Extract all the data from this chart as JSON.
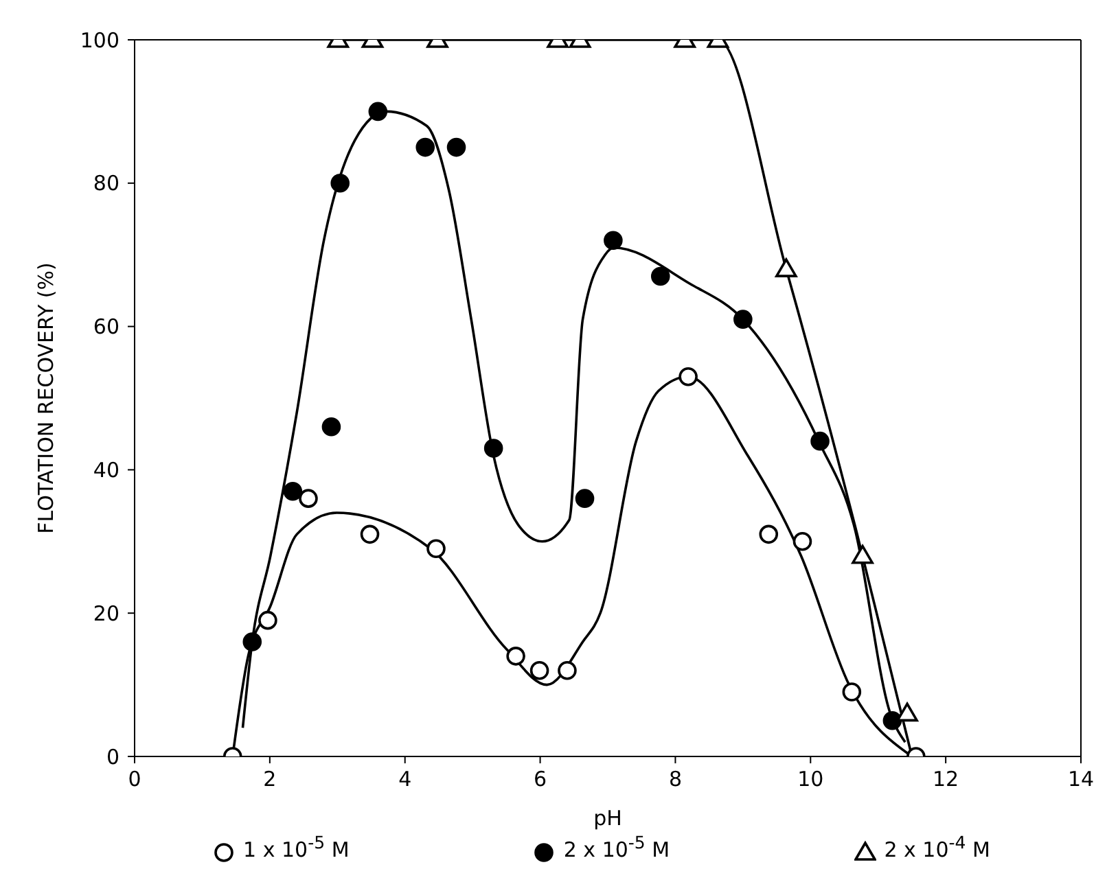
{
  "chart_data": {
    "type": "scatter",
    "xlabel": "pH",
    "ylabel": "FLOTATION RECOVERY (%)",
    "xlim": [
      0,
      14
    ],
    "xticks": [
      0,
      2,
      4,
      6,
      8,
      10,
      12,
      14
    ],
    "ylim": [
      0,
      100
    ],
    "yticks": [
      0,
      20,
      40,
      60,
      80,
      100
    ],
    "grid": false,
    "legend": "bottom",
    "series": [
      {
        "name": "1 x 10$^{-5}$ M",
        "color": "#ffffff",
        "marker": "circle",
        "x": [
          1.45,
          1.97,
          2.57,
          3.48,
          4.46,
          5.64,
          5.99,
          6.4,
          8.19,
          9.38,
          9.88,
          10.61,
          11.56
        ],
        "values": [
          0,
          19,
          36,
          31,
          29,
          14,
          12,
          12,
          53,
          31,
          30,
          9,
          0
        ]
      },
      {
        "name": "2 x 10$^{-5}$ M",
        "color": "#000000",
        "marker": "circle",
        "x": [
          1.74,
          2.34,
          2.91,
          3.04,
          3.6,
          4.3,
          4.76,
          5.31,
          6.66,
          7.08,
          7.78,
          9.0,
          10.14,
          11.21
        ],
        "values": [
          16,
          37,
          46,
          80,
          90,
          85,
          85,
          43,
          36,
          72,
          67,
          61,
          44,
          5
        ]
      },
      {
        "name": "2 x 10$^{-4}$ M",
        "color": "#ffffff",
        "marker": "triangle",
        "x": [
          3.01,
          3.52,
          4.48,
          6.26,
          6.59,
          8.14,
          8.63,
          9.64,
          10.77,
          11.43
        ],
        "values": [
          100,
          100,
          100,
          100,
          100,
          100,
          100,
          68,
          28,
          6
        ]
      },
      {
        "type": "line",
        "color": "#000000",
        "marker": "none",
        "x": [
          1.45,
          1.68,
          2.01,
          2.4,
          2.99,
          4.38,
          5.5,
          6.1,
          6.63,
          6.89,
          7.42,
          7.75,
          8.19,
          9.07,
          9.86,
          10.57,
          11.5
        ],
        "values": [
          0,
          14,
          21,
          31,
          34,
          29,
          15,
          10,
          16,
          20,
          44,
          51,
          53,
          42,
          28,
          10,
          0
        ]
      },
      {
        "type": "line",
        "color": "#000000",
        "marker": "none",
        "x": [
          1.6,
          1.74,
          2.01,
          2.4,
          2.8,
          3.26,
          3.72,
          4.32,
          4.65,
          4.98,
          5.31,
          5.7,
          6.03,
          6.43,
          6.63,
          6.96,
          7.09,
          8.21,
          9.0,
          10.12,
          10.65,
          11.18,
          11.4
        ],
        "values": [
          4,
          16,
          28,
          48,
          72,
          86,
          90,
          88,
          79,
          61,
          42,
          32,
          30,
          33,
          61,
          70,
          71,
          66,
          61,
          44,
          32,
          6,
          2
        ]
      },
      {
        "type": "line",
        "color": "#000000",
        "marker": "none",
        "x": [
          3.0,
          8.63,
          9.64,
          10.69,
          11.5
        ],
        "values": [
          100,
          100,
          68,
          31,
          0
        ]
      }
    ]
  }
}
